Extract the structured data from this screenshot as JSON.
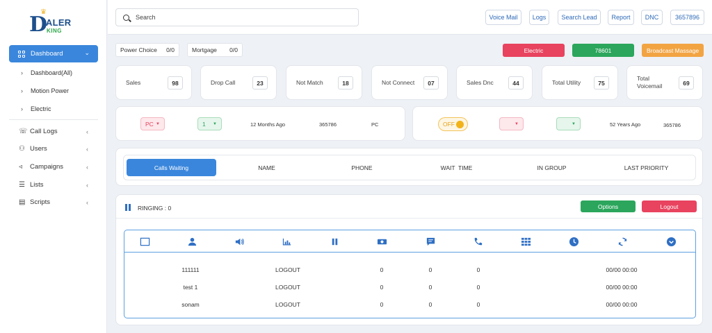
{
  "brand": {
    "logo_big": "D",
    "logo_top": "IALER",
    "logo_bottom": "KING",
    "crown": "♛"
  },
  "sidebar": {
    "active": {
      "label": "Dashboard"
    },
    "sub_items": [
      {
        "label": "Dashboard(All)"
      },
      {
        "label": "Motion Power"
      },
      {
        "label": "Electric"
      }
    ],
    "items": [
      {
        "label": "Call Logs"
      },
      {
        "label": "Users"
      },
      {
        "label": "Campaigns"
      },
      {
        "label": "Lists"
      },
      {
        "label": "Scripts"
      }
    ]
  },
  "topbar": {
    "search_placeholder": "Search",
    "buttons": [
      "Voice Mail",
      "Logs",
      "Search Lead",
      "Report",
      "DNC",
      "3657896"
    ]
  },
  "row1": {
    "power_choice": {
      "label": "Power Choice",
      "value": "0/0"
    },
    "mortgage": {
      "label": "Mortgage",
      "value": "0/0"
    },
    "electric_label": "Electric",
    "number_label": "78601",
    "broadcast_label": "Broadcast Massage",
    "colors": {
      "red": "#e8435f",
      "green": "#2ba65c",
      "orange": "#f2a443"
    }
  },
  "stats": [
    {
      "label": "Sales",
      "value": "98"
    },
    {
      "label": "Drop Call",
      "value": "23"
    },
    {
      "label": "Not Match",
      "value": "18"
    },
    {
      "label": "Not Connect",
      "value": "07"
    },
    {
      "label": "Sales Dnc",
      "value": "44"
    },
    {
      "label": "Total Utility",
      "value": "75"
    },
    {
      "label_line1": "Total",
      "label_line2": "Voicemail",
      "value": "69"
    }
  ],
  "info_left": {
    "select1": "PC",
    "select2": "1",
    "time": "12 Months Ago",
    "number": "365786",
    "type": "PC"
  },
  "info_right": {
    "toggle": "OFF",
    "select1": "",
    "select2": "",
    "time": "52 Years Ago",
    "number": "365786"
  },
  "tabs": [
    "Calls Waiting",
    "NAME",
    "PHONE",
    "WAIT  TIME",
    "IN GROUP",
    "LAST PRIORITY"
  ],
  "ringing": {
    "label": "RINGING : 0",
    "options_label": "Options",
    "logout_label": "Logout",
    "header_icons": [
      "checkbox-icon",
      "user-icon",
      "volume-icon",
      "bar-chart-icon",
      "pause-icon",
      "money-icon",
      "chat-icon",
      "phone-icon",
      "keypad-icon",
      "clock-icon",
      "refresh-icon",
      "chevron-down-circle-icon"
    ],
    "rows": [
      {
        "name": "111111",
        "status": "LOGOUT",
        "c1": "0",
        "c2": "0",
        "c3": "0",
        "time": "00/00 00:00"
      },
      {
        "name": "test 1",
        "status": "LOGOUT",
        "c1": "0",
        "c2": "0",
        "c3": "0",
        "time": "00/00 00:00"
      },
      {
        "name": "sonam",
        "status": "LOGOUT",
        "c1": "0",
        "c2": "0",
        "c3": "0",
        "time": "00/00 00:00"
      }
    ]
  }
}
